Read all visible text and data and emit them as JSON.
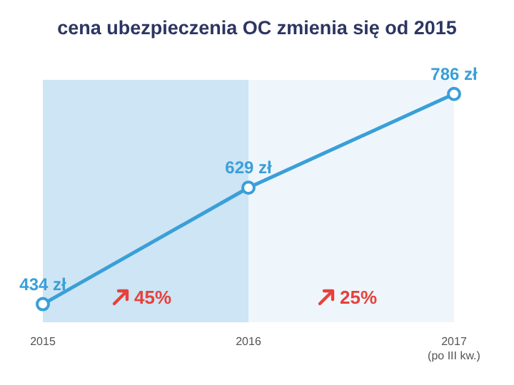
{
  "chart_data": {
    "type": "line",
    "title": "cena ubezpieczenia OC zmienia się od 2015",
    "categories": [
      "2015",
      "2016",
      "2017 (po III kw.)"
    ],
    "series": [
      {
        "color": "#3a9fd8",
        "values": [
          434,
          629,
          786
        ],
        "value_labels": [
          "434 zł",
          "629 zł",
          "786 zł"
        ]
      }
    ],
    "tick_labels": "x",
    "marker": "circle",
    "line_style": "solid",
    "bands": [
      {
        "axis": "x",
        "from": "2015",
        "to": "2016",
        "label": "45%",
        "color": "#cde5f4"
      },
      {
        "axis": "x",
        "from": "2016",
        "to": "2017 (po III kw.)",
        "label": "25%",
        "color": "#eef6fc"
      }
    ]
  }
}
